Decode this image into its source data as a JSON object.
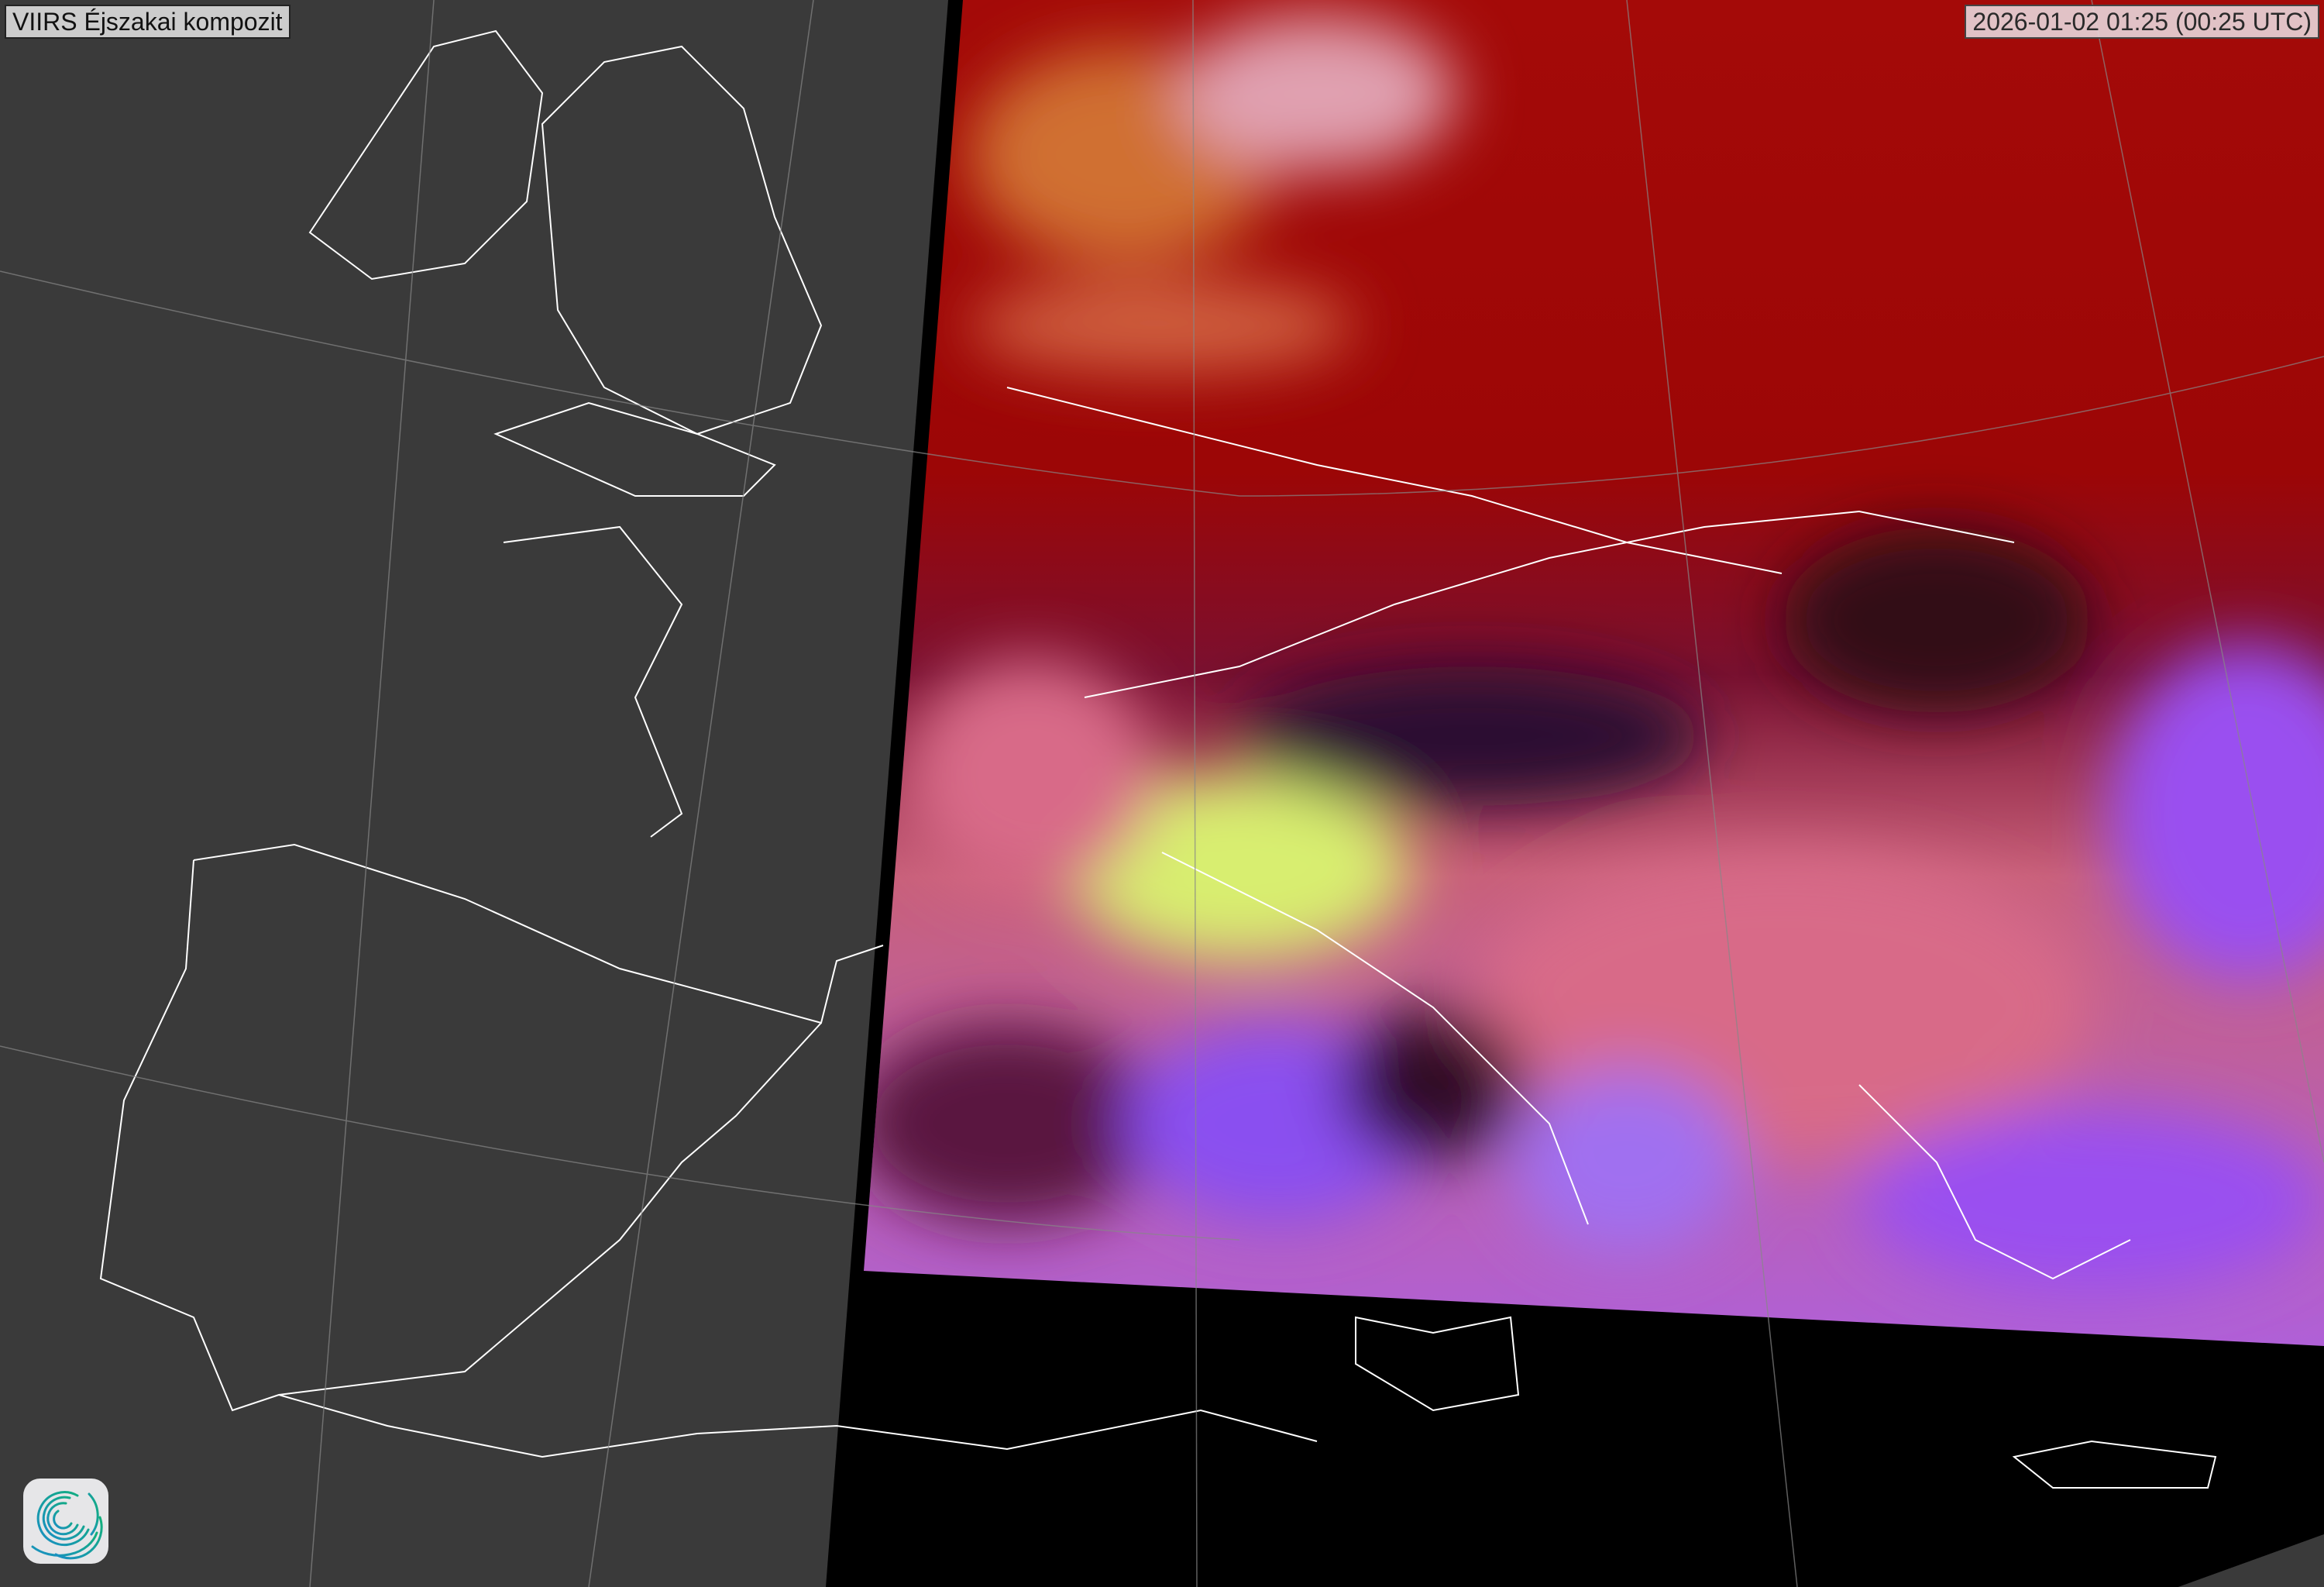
{
  "title": "VIIRS Éjszakai kompozit",
  "timestamp": "2026-01-02 01:25 (00:25 UTC)",
  "logo": {
    "icon": "spiral-logo-icon",
    "colors": [
      "#1a8fc4",
      "#12b07a"
    ]
  },
  "colors": {
    "background": "#3a3a3a",
    "nodata": "#000000",
    "coastline": "#ffffff",
    "cloud_red": "#a00000",
    "surface_pink": "#d86a88",
    "sea_violet": "#9a4ff0",
    "fog_yellow": "#d8ee70"
  }
}
